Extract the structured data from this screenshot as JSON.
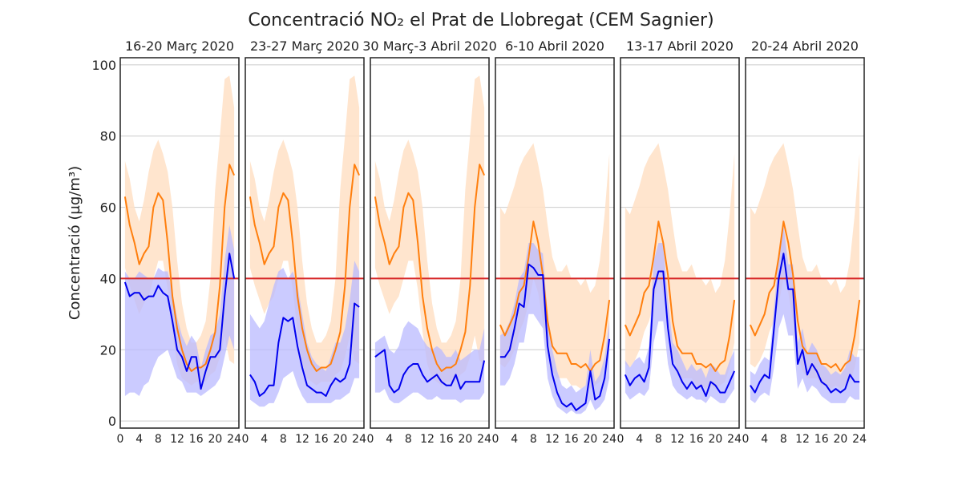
{
  "chart_data": {
    "type": "line",
    "title": "Concentració NO₂ el Prat de Llobregat (CEM Sagnier)",
    "ylabel": "Concentració (µg/m³)",
    "xlabel": "",
    "ylim": [
      -2,
      102
    ],
    "yticks": [
      0,
      20,
      40,
      60,
      80,
      100
    ],
    "xlim": [
      0,
      25
    ],
    "xticks": [
      0,
      4,
      8,
      12,
      16,
      20,
      24
    ],
    "grid": "horizontal",
    "limit_line": {
      "value": 40,
      "color": "#d62728"
    },
    "colors": {
      "orange_line": "#ff7f0e",
      "orange_band": "#ffe1c6",
      "blue_line": "#0000ee",
      "blue_band": "#b9b9ff"
    },
    "panels": [
      {
        "title": "16-20 Març 2020",
        "x": [
          1,
          2,
          3,
          4,
          5,
          6,
          7,
          8,
          9,
          10,
          11,
          12,
          13,
          14,
          15,
          16,
          17,
          18,
          19,
          20,
          21,
          22,
          23,
          24
        ],
        "orange": {
          "values": [
            63,
            55,
            50,
            44,
            47,
            49,
            60,
            64,
            62,
            50,
            35,
            26,
            20,
            16,
            14,
            15,
            15,
            16,
            20,
            25,
            38,
            60,
            72,
            69
          ],
          "lower": [
            43,
            38,
            34,
            30,
            33,
            35,
            40,
            45,
            45,
            37,
            25,
            16,
            12,
            11,
            10,
            11,
            11,
            11,
            13,
            14,
            18,
            24,
            17,
            16
          ],
          "upper": [
            73,
            68,
            60,
            56,
            62,
            70,
            76,
            79,
            75,
            70,
            60,
            45,
            33,
            26,
            22,
            22,
            24,
            28,
            40,
            65,
            80,
            96,
            97,
            88
          ]
        },
        "blue": {
          "values": [
            39,
            35,
            36,
            36,
            34,
            35,
            35,
            38,
            36,
            35,
            28,
            20,
            18,
            14,
            18,
            18,
            9,
            14,
            18,
            18,
            20,
            35,
            47,
            40
          ],
          "lower": [
            7,
            8,
            8,
            7,
            10,
            11,
            15,
            18,
            19,
            20,
            16,
            12,
            11,
            8,
            8,
            8,
            7,
            8,
            9,
            10,
            12,
            18,
            24,
            20
          ],
          "upper": [
            42,
            40,
            40,
            42,
            41,
            40,
            40,
            43,
            42,
            42,
            36,
            29,
            24,
            21,
            24,
            22,
            15,
            20,
            24,
            25,
            30,
            45,
            55,
            48
          ]
        }
      },
      {
        "title": "23-27 Març 2020",
        "x": [
          1,
          2,
          3,
          4,
          5,
          6,
          7,
          8,
          9,
          10,
          11,
          12,
          13,
          14,
          15,
          16,
          17,
          18,
          19,
          20,
          21,
          22,
          23,
          24
        ],
        "orange": {
          "values": [
            63,
            55,
            50,
            44,
            47,
            49,
            60,
            64,
            62,
            50,
            35,
            26,
            20,
            16,
            14,
            15,
            15,
            16,
            20,
            25,
            38,
            60,
            72,
            69
          ],
          "lower": [
            43,
            38,
            34,
            30,
            33,
            35,
            40,
            45,
            45,
            37,
            25,
            16,
            12,
            11,
            10,
            11,
            11,
            11,
            13,
            14,
            18,
            24,
            17,
            16
          ],
          "upper": [
            73,
            68,
            60,
            56,
            62,
            70,
            76,
            79,
            75,
            70,
            60,
            45,
            33,
            26,
            22,
            22,
            24,
            28,
            40,
            65,
            80,
            96,
            97,
            88
          ]
        },
        "blue": {
          "values": [
            13,
            11,
            7,
            8,
            10,
            10,
            22,
            29,
            28,
            29,
            21,
            15,
            10,
            9,
            8,
            8,
            7,
            10,
            12,
            11,
            12,
            16,
            33,
            32
          ],
          "lower": [
            6,
            5,
            4,
            4,
            5,
            5,
            8,
            12,
            13,
            14,
            10,
            7,
            5,
            5,
            5,
            5,
            5,
            5,
            6,
            6,
            7,
            8,
            12,
            12
          ],
          "upper": [
            30,
            28,
            26,
            28,
            33,
            38,
            42,
            43,
            40,
            42,
            38,
            30,
            22,
            18,
            16,
            15,
            14,
            18,
            22,
            22,
            26,
            34,
            45,
            42
          ]
        }
      },
      {
        "title": "30 Març-3 Abril 2020",
        "x": [
          1,
          2,
          3,
          4,
          5,
          6,
          7,
          8,
          9,
          10,
          11,
          12,
          13,
          14,
          15,
          16,
          17,
          18,
          19,
          20,
          21,
          22,
          23,
          24
        ],
        "orange": {
          "values": [
            63,
            55,
            50,
            44,
            47,
            49,
            60,
            64,
            62,
            50,
            35,
            26,
            20,
            16,
            14,
            15,
            15,
            16,
            20,
            25,
            38,
            60,
            72,
            69
          ],
          "lower": [
            43,
            38,
            34,
            30,
            33,
            35,
            40,
            45,
            45,
            37,
            25,
            16,
            12,
            11,
            10,
            11,
            11,
            11,
            13,
            14,
            18,
            24,
            17,
            16
          ],
          "upper": [
            73,
            68,
            60,
            56,
            62,
            70,
            76,
            79,
            75,
            70,
            60,
            45,
            33,
            26,
            22,
            22,
            24,
            28,
            40,
            65,
            80,
            96,
            97,
            88
          ]
        },
        "blue": {
          "values": [
            18,
            19,
            20,
            10,
            8,
            9,
            13,
            15,
            16,
            16,
            13,
            11,
            12,
            13,
            11,
            10,
            10,
            13,
            9,
            11,
            11,
            11,
            11,
            17
          ],
          "lower": [
            8,
            8,
            9,
            6,
            5,
            5,
            6,
            7,
            8,
            8,
            7,
            6,
            6,
            7,
            6,
            6,
            6,
            6,
            5,
            6,
            6,
            6,
            6,
            8
          ],
          "upper": [
            22,
            23,
            24,
            20,
            19,
            21,
            26,
            28,
            27,
            26,
            23,
            21,
            20,
            21,
            20,
            18,
            18,
            20,
            17,
            18,
            19,
            20,
            20,
            26
          ]
        }
      },
      {
        "title": "6-10 Abril 2020",
        "x": [
          1,
          2,
          3,
          4,
          5,
          6,
          7,
          8,
          9,
          10,
          11,
          12,
          13,
          14,
          15,
          16,
          17,
          18,
          19,
          20,
          21,
          22,
          23,
          24
        ],
        "orange": {
          "values": [
            27,
            24,
            27,
            30,
            36,
            38,
            46,
            56,
            50,
            41,
            28,
            21,
            19,
            19,
            19,
            16,
            16,
            15,
            16,
            14,
            16,
            17,
            24,
            34
          ],
          "lower": [
            16,
            15,
            17,
            20,
            25,
            28,
            33,
            40,
            36,
            28,
            19,
            14,
            12,
            12,
            12,
            10,
            10,
            9,
            10,
            9,
            10,
            11,
            15,
            22
          ],
          "upper": [
            60,
            58,
            62,
            66,
            71,
            74,
            76,
            78,
            72,
            65,
            55,
            46,
            42,
            42,
            44,
            40,
            40,
            38,
            40,
            36,
            38,
            45,
            58,
            75
          ]
        },
        "blue": {
          "values": [
            18,
            18,
            20,
            26,
            33,
            32,
            44,
            43,
            41,
            41,
            21,
            13,
            8,
            5,
            4,
            5,
            3,
            4,
            5,
            14,
            6,
            7,
            12,
            23
          ],
          "lower": [
            10,
            10,
            12,
            16,
            22,
            22,
            30,
            30,
            28,
            26,
            12,
            7,
            4,
            3,
            2,
            3,
            2,
            2,
            3,
            6,
            3,
            4,
            6,
            12
          ],
          "upper": [
            24,
            25,
            28,
            33,
            40,
            42,
            50,
            50,
            48,
            47,
            30,
            20,
            14,
            10,
            9,
            10,
            8,
            9,
            10,
            20,
            11,
            13,
            18,
            28
          ]
        }
      },
      {
        "title": "13-17 Abril 2020",
        "x": [
          1,
          2,
          3,
          4,
          5,
          6,
          7,
          8,
          9,
          10,
          11,
          12,
          13,
          14,
          15,
          16,
          17,
          18,
          19,
          20,
          21,
          22,
          23,
          24
        ],
        "orange": {
          "values": [
            27,
            24,
            27,
            30,
            36,
            38,
            46,
            56,
            50,
            41,
            28,
            21,
            19,
            19,
            19,
            16,
            16,
            15,
            16,
            14,
            16,
            17,
            24,
            34
          ],
          "lower": [
            16,
            15,
            17,
            20,
            25,
            28,
            33,
            40,
            36,
            28,
            19,
            14,
            12,
            12,
            12,
            10,
            10,
            9,
            10,
            9,
            10,
            11,
            15,
            22
          ],
          "upper": [
            60,
            58,
            62,
            66,
            71,
            74,
            76,
            78,
            72,
            65,
            55,
            46,
            42,
            42,
            44,
            40,
            40,
            38,
            40,
            36,
            38,
            45,
            58,
            75
          ]
        },
        "blue": {
          "values": [
            13,
            10,
            12,
            13,
            11,
            15,
            37,
            42,
            42,
            26,
            16,
            14,
            11,
            9,
            11,
            9,
            10,
            7,
            11,
            10,
            8,
            8,
            11,
            14
          ],
          "lower": [
            8,
            6,
            7,
            8,
            7,
            9,
            22,
            28,
            28,
            16,
            10,
            8,
            7,
            6,
            7,
            6,
            6,
            5,
            7,
            6,
            5,
            5,
            7,
            9
          ],
          "upper": [
            17,
            15,
            17,
            18,
            16,
            21,
            45,
            50,
            50,
            34,
            22,
            20,
            17,
            14,
            16,
            14,
            15,
            12,
            16,
            15,
            13,
            13,
            17,
            20
          ]
        }
      },
      {
        "title": "20-24 Abril 2020",
        "x": [
          1,
          2,
          3,
          4,
          5,
          6,
          7,
          8,
          9,
          10,
          11,
          12,
          13,
          14,
          15,
          16,
          17,
          18,
          19,
          20,
          21,
          22,
          23,
          24
        ],
        "orange": {
          "values": [
            27,
            24,
            27,
            30,
            36,
            38,
            46,
            56,
            50,
            41,
            28,
            21,
            19,
            19,
            19,
            16,
            16,
            15,
            16,
            14,
            16,
            17,
            24,
            34
          ],
          "lower": [
            16,
            15,
            17,
            20,
            25,
            28,
            33,
            40,
            36,
            28,
            19,
            14,
            12,
            12,
            12,
            10,
            10,
            9,
            10,
            9,
            10,
            11,
            15,
            22
          ],
          "upper": [
            60,
            58,
            62,
            66,
            71,
            74,
            76,
            78,
            72,
            65,
            55,
            46,
            42,
            42,
            44,
            40,
            40,
            38,
            40,
            36,
            38,
            45,
            58,
            75
          ]
        },
        "blue": {
          "values": [
            10,
            8,
            11,
            13,
            12,
            26,
            40,
            47,
            37,
            37,
            16,
            20,
            13,
            16,
            14,
            11,
            10,
            8,
            9,
            8,
            9,
            13,
            11,
            11
          ],
          "lower": [
            6,
            5,
            7,
            8,
            7,
            15,
            26,
            30,
            24,
            24,
            9,
            12,
            8,
            10,
            9,
            7,
            6,
            5,
            5,
            5,
            5,
            7,
            6,
            6
          ],
          "upper": [
            14,
            13,
            16,
            18,
            17,
            32,
            46,
            55,
            44,
            44,
            22,
            26,
            19,
            22,
            20,
            16,
            15,
            13,
            14,
            13,
            15,
            20,
            18,
            18
          ]
        }
      }
    ]
  }
}
